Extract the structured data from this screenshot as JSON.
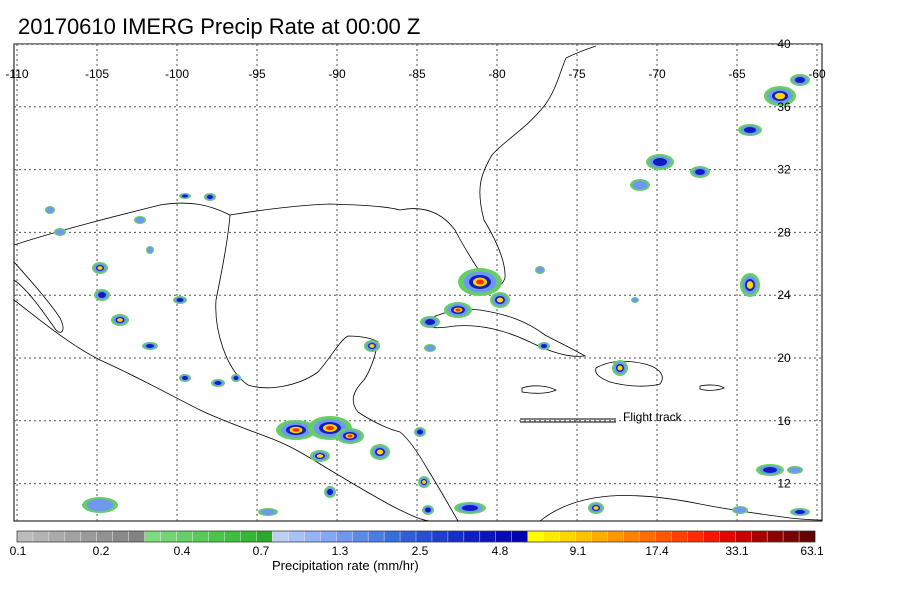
{
  "title": "20170610 IMERG Precip Rate at 00:00 Z",
  "map": {
    "longitude_labels": [
      "-110",
      "-105",
      "-100",
      "-95",
      "-90",
      "-85",
      "-80",
      "-75",
      "-70",
      "-65",
      "-60"
    ],
    "latitude_labels": [
      "40",
      "36",
      "32",
      "28",
      "24",
      "20",
      "16",
      "12"
    ],
    "legend_flight_track": "Flight track",
    "grid": true
  },
  "colorbar": {
    "label": "Precipitation rate (mm/hr)",
    "tick_labels": [
      "0.1",
      "0.2",
      "0.4",
      "0.7",
      "1.3",
      "2.5",
      "4.8",
      "9.1",
      "17.4",
      "33.1",
      "63.1"
    ],
    "colors": [
      "#bbbbbb",
      "#b3b3b3",
      "#aaaaaa",
      "#a2a2a2",
      "#9a9a9a",
      "#929292",
      "#8a8a8a",
      "#828282",
      "#7fd97f",
      "#72d472",
      "#65cf65",
      "#58ca58",
      "#4bc54b",
      "#3ec03e",
      "#33b833",
      "#2aaa2a",
      "#bcd0f5",
      "#a9c2f5",
      "#96b4f5",
      "#83a6f5",
      "#7098f0",
      "#5d8aea",
      "#4a7ce4",
      "#376ede",
      "#2f5ed8",
      "#274ed2",
      "#1f3ecc",
      "#172ec6",
      "#0f1ec0",
      "#0a14ba",
      "#050ab4",
      "#0000ae",
      "#ffff00",
      "#ffea00",
      "#ffd500",
      "#ffc000",
      "#ffab00",
      "#ff9600",
      "#ff8100",
      "#ff6c00",
      "#ff5700",
      "#ff4200",
      "#ff2d00",
      "#f21800",
      "#dd0800",
      "#c40000",
      "#a80000",
      "#8c0000",
      "#780000",
      "#660000"
    ]
  }
}
